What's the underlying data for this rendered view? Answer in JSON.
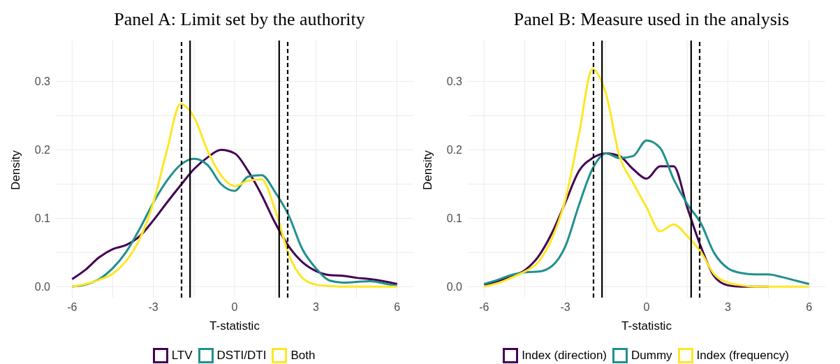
{
  "chart_data": [
    {
      "type": "line",
      "title": "Panel A: Limit set by the authority",
      "xlabel": "T-statistic",
      "ylabel": "Density",
      "x": [
        -6,
        -5.5,
        -5,
        -4.5,
        -4,
        -3.5,
        -3,
        -2.5,
        -2,
        -1.5,
        -1,
        -0.5,
        0,
        0.5,
        1,
        1.5,
        2,
        2.5,
        3,
        3.5,
        4,
        4.5,
        5,
        5.5,
        6
      ],
      "series": [
        {
          "name": "LTV",
          "color": "#440154",
          "values": [
            0.011,
            0.025,
            0.043,
            0.055,
            0.061,
            0.074,
            0.097,
            0.123,
            0.148,
            0.172,
            0.189,
            0.2,
            0.195,
            0.169,
            0.134,
            0.093,
            0.059,
            0.036,
            0.023,
            0.017,
            0.016,
            0.013,
            0.011,
            0.008,
            0.004
          ]
        },
        {
          "name": "DSTI/DTI",
          "color": "#21908c",
          "values": [
            0,
            0.003,
            0.011,
            0.027,
            0.051,
            0.085,
            0.123,
            0.155,
            0.178,
            0.187,
            0.178,
            0.15,
            0.14,
            0.161,
            0.163,
            0.138,
            0.104,
            0.055,
            0.027,
            0.009,
            0.006,
            0.007,
            0.008,
            0.005,
            0.001
          ]
        },
        {
          "name": "Both",
          "color": "#fde725",
          "values": [
            0,
            0.004,
            0.01,
            0.019,
            0.038,
            0.07,
            0.123,
            0.199,
            0.267,
            0.248,
            0.199,
            0.163,
            0.147,
            0.155,
            0.157,
            0.112,
            0.047,
            0.013,
            0.003,
            0.001,
            0,
            0,
            0,
            0,
            0
          ]
        }
      ],
      "xlim": [
        -6.6,
        6.6
      ],
      "xticks": [
        -6,
        -3,
        0,
        3,
        6
      ],
      "ylim": [
        -0.016,
        0.36
      ],
      "yticks": [
        {
          "value": 0,
          "label": "0.0"
        },
        0.1,
        0.2,
        0.3
      ],
      "ref_lines": [
        {
          "axis": "x",
          "value": -1.96,
          "color": "#000000",
          "line_style": "dashed"
        },
        {
          "axis": "x",
          "value": -1.645,
          "color": "#000000",
          "line_style": "solid"
        },
        {
          "axis": "x",
          "value": 1.645,
          "color": "#000000",
          "line_style": "solid"
        },
        {
          "axis": "x",
          "value": 1.96,
          "color": "#000000",
          "line_style": "dashed"
        }
      ],
      "grid": true,
      "legend": "bottom",
      "line_style": "solid"
    },
    {
      "type": "line",
      "title": "Panel B: Measure used in the analysis",
      "xlabel": "T-statistic",
      "ylabel": "Density",
      "x": [
        -6,
        -5.5,
        -5,
        -4.5,
        -4,
        -3.5,
        -3,
        -2.5,
        -2,
        -1.5,
        -1,
        -0.5,
        0,
        0.5,
        1,
        1.5,
        2,
        2.5,
        3,
        3.5,
        4,
        4.5,
        5,
        5.5,
        6
      ],
      "series": [
        {
          "name": "Index (direction)",
          "color": "#440154",
          "values": [
            0.003,
            0.008,
            0.015,
            0.024,
            0.044,
            0.078,
            0.123,
            0.169,
            0.188,
            0.195,
            0.191,
            0.172,
            0.158,
            0.176,
            0.176,
            0.116,
            0.059,
            0.015,
            0.002,
            0,
            0,
            0,
            null,
            null,
            null
          ]
        },
        {
          "name": "Dummy",
          "color": "#21908c",
          "values": [
            0.004,
            0.01,
            0.017,
            0.021,
            0.022,
            0.03,
            0.059,
            0.119,
            0.172,
            0.195,
            0.188,
            0.191,
            0.214,
            0.203,
            0.157,
            0.121,
            0.093,
            0.049,
            0.027,
            0.02,
            0.018,
            0.018,
            0.014,
            0.009,
            0.004
          ]
        },
        {
          "name": "Index (frequency)",
          "color": "#fde725",
          "values": [
            0,
            0.005,
            0.013,
            0.022,
            0.036,
            0.07,
            0.127,
            0.222,
            0.318,
            0.282,
            0.191,
            0.152,
            0.116,
            0.081,
            0.091,
            0.074,
            0.051,
            0.018,
            0.006,
            0.002,
            0,
            0,
            0,
            0,
            0
          ]
        }
      ],
      "xlim": [
        -6.6,
        6.6
      ],
      "xticks": [
        -6,
        -3,
        0,
        3,
        6
      ],
      "ylim": [
        -0.016,
        0.36
      ],
      "yticks": [
        {
          "value": 0,
          "label": "0.0"
        },
        0.1,
        0.2,
        0.3
      ],
      "ref_lines": [
        {
          "axis": "x",
          "value": -1.96,
          "color": "#000000",
          "line_style": "dashed"
        },
        {
          "axis": "x",
          "value": -1.645,
          "color": "#000000",
          "line_style": "solid"
        },
        {
          "axis": "x",
          "value": 1.645,
          "color": "#000000",
          "line_style": "solid"
        },
        {
          "axis": "x",
          "value": 1.96,
          "color": "#000000",
          "line_style": "dashed"
        }
      ],
      "grid": true,
      "legend": "bottom",
      "line_style": "solid"
    }
  ]
}
